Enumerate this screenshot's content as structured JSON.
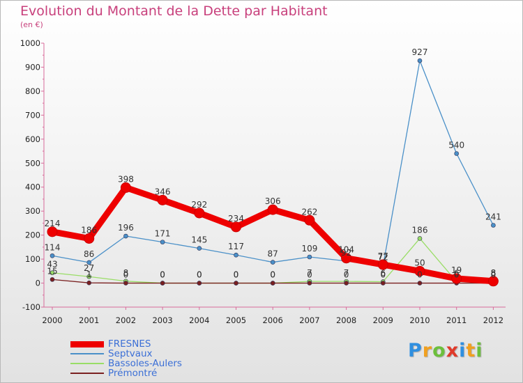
{
  "chart_data": {
    "type": "line",
    "title": "Evolution du Montant de la Dette par Habitant",
    "subtitle": "(en €)",
    "x": [
      "2000",
      "2001",
      "2002",
      "2003",
      "2004",
      "2005",
      "2006",
      "2007",
      "2008",
      "2009",
      "2010",
      "2011",
      "2012"
    ],
    "ylim": [
      -100,
      1000
    ],
    "yticks": [
      -100,
      0,
      100,
      200,
      300,
      400,
      500,
      600,
      700,
      800,
      900,
      1000
    ],
    "grid": false,
    "legend": "bottom-left",
    "series": [
      {
        "name": "FRESNES",
        "color": "#ee0000",
        "values": [
          214,
          186,
          398,
          346,
          292,
          234,
          306,
          262,
          104,
          77,
          50,
          19,
          8
        ]
      },
      {
        "name": "Septvaux",
        "color": "#4a90c8",
        "values": [
          114,
          86,
          196,
          171,
          145,
          117,
          87,
          109,
          92,
          72,
          927,
          540,
          241
        ]
      },
      {
        "name": "Bassoles-Aulers",
        "color": "#99dd66",
        "values": [
          43,
          27,
          8,
          0,
          0,
          0,
          0,
          7,
          7,
          6,
          186,
          6,
          8
        ]
      },
      {
        "name": "Prémontré",
        "color": "#7a2020",
        "values": [
          15,
          1,
          0,
          0,
          0,
          0,
          0,
          0,
          0,
          0,
          0,
          0,
          0
        ]
      }
    ]
  },
  "brand": {
    "letters": [
      "P",
      "r",
      "o",
      "x",
      "i",
      "t",
      "i"
    ],
    "colors": [
      "#2f8fe0",
      "#f0a020",
      "#6cbf3c",
      "#e03a2a",
      "#2f8fe0",
      "#f0a020",
      "#6cbf3c"
    ]
  }
}
